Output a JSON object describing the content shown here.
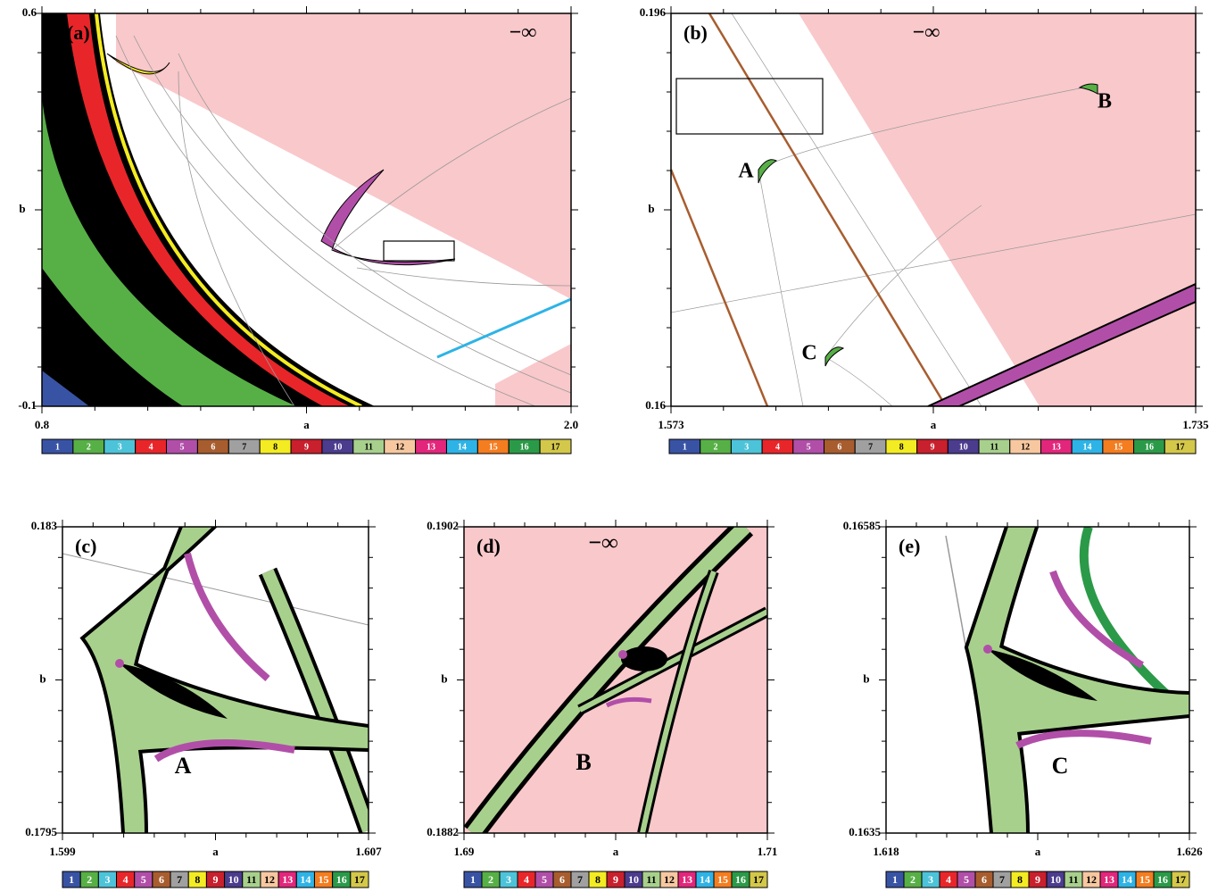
{
  "panels": [
    {
      "label": "(a)",
      "y_top": "0.6",
      "y_bottom": "-0.1",
      "y_label": "b",
      "x_left": "0.8",
      "x_right": "2.0",
      "x_label": "a",
      "annotations": [
        "−∞"
      ]
    },
    {
      "label": "(b)",
      "y_top": "0.196",
      "y_bottom": "0.16",
      "y_label": "b",
      "x_left": "1.573",
      "x_right": "1.735",
      "x_label": "a",
      "annotations": [
        "−∞",
        "A",
        "B",
        "C"
      ]
    },
    {
      "label": "(c)",
      "y_top": "0.183",
      "y_bottom": "0.1795",
      "y_label": "b",
      "x_left": "1.599",
      "x_right": "1.607",
      "x_label": "a",
      "annotations": [
        "A"
      ]
    },
    {
      "label": "(d)",
      "y_top": "0.1902",
      "y_bottom": "0.1882",
      "y_label": "b",
      "x_left": "1.69",
      "x_right": "1.71",
      "x_label": "a",
      "annotations": [
        "−∞",
        "B"
      ]
    },
    {
      "label": "(e)",
      "y_top": "0.16585",
      "y_bottom": "0.1635",
      "y_label": "b",
      "x_left": "1.618",
      "x_right": "1.626",
      "x_label": "a",
      "annotations": [
        "C"
      ]
    }
  ],
  "colorbar": {
    "labels": [
      "1",
      "2",
      "3",
      "4",
      "5",
      "6",
      "7",
      "8",
      "9",
      "10",
      "11",
      "12",
      "13",
      "14",
      "15",
      "16",
      "17"
    ],
    "colors": [
      "#3953a4",
      "#57b046",
      "#4dc3d9",
      "#e8262a",
      "#b14fa8",
      "#a85d2f",
      "#a0a0a0",
      "#f4ec22",
      "#c8202d",
      "#4b3c8e",
      "#a8d08d",
      "#f7c8a0",
      "#e2267b",
      "#2eb3e6",
      "#f47d20",
      "#2b9a48",
      "#d4c84a"
    ]
  }
}
